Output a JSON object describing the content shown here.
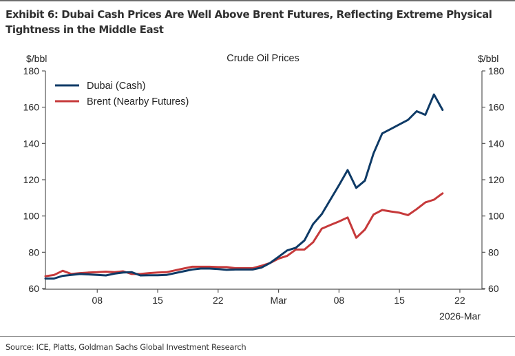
{
  "exhibit": {
    "title": "Exhibit 6: Dubai Cash Prices Are Well Above Brent Futures, Reflecting Extreme Physical Tightness in the Middle East",
    "source": "Source: ICE, Platts, Goldman Sachs Global Investment Research"
  },
  "chart_data": {
    "type": "line",
    "title": "Crude Oil Prices",
    "xlabel": "2026-Mar",
    "ylabel_left": "$/bbl",
    "ylabel_right": "$/bbl",
    "ylim": [
      60,
      180
    ],
    "yticks": [
      60,
      80,
      100,
      120,
      140,
      160,
      180
    ],
    "xlim_days": [
      0,
      52
    ],
    "xticks": [
      {
        "day": 6,
        "label": "08"
      },
      {
        "day": 13,
        "label": "15"
      },
      {
        "day": 20,
        "label": "22"
      },
      {
        "day": 27,
        "label": "Mar"
      },
      {
        "day": 34,
        "label": "08"
      },
      {
        "day": 41,
        "label": "15"
      },
      {
        "day": 48,
        "label": "22"
      }
    ],
    "x_note": "day 0 = 2026-02-02 (approx.), day index in calendar days",
    "grid": false,
    "legend_position": "top-left",
    "series": [
      {
        "name": "Dubai (Cash)",
        "color": "#0e3a66",
        "points": [
          [
            0,
            65.5
          ],
          [
            1,
            65.5
          ],
          [
            2,
            67.0
          ],
          [
            3,
            67.5
          ],
          [
            4,
            68.0
          ],
          [
            5,
            67.8
          ],
          [
            6,
            67.5
          ],
          [
            7,
            67.2
          ],
          [
            8,
            68.2
          ],
          [
            9,
            68.8
          ],
          [
            10,
            69.0
          ],
          [
            11,
            67.2
          ],
          [
            12,
            67.3
          ],
          [
            13,
            67.3
          ],
          [
            14,
            67.5
          ],
          [
            15,
            68.5
          ],
          [
            16,
            69.5
          ],
          [
            17,
            70.5
          ],
          [
            18,
            71.0
          ],
          [
            19,
            71.0
          ],
          [
            20,
            70.7
          ],
          [
            21,
            70.3
          ],
          [
            22,
            70.5
          ],
          [
            23,
            70.5
          ],
          [
            24,
            70.5
          ],
          [
            25,
            71.5
          ],
          [
            26,
            74.0
          ],
          [
            27,
            77.5
          ],
          [
            28,
            81.0
          ],
          [
            29,
            82.5
          ],
          [
            30,
            86.5
          ],
          [
            31,
            95.5
          ],
          [
            32,
            101.0
          ],
          [
            33,
            109.0
          ],
          [
            34,
            117.0
          ],
          [
            35,
            125.3
          ],
          [
            36,
            115.5
          ],
          [
            37,
            119.5
          ],
          [
            38,
            134.5
          ],
          [
            39,
            145.5
          ],
          [
            40,
            148.0
          ],
          [
            41,
            150.5
          ],
          [
            42,
            153.0
          ],
          [
            43,
            157.8
          ],
          [
            44,
            155.8
          ],
          [
            45,
            167.0
          ],
          [
            46,
            158.5
          ]
        ]
      },
      {
        "name": "Brent (Nearby Futures)",
        "color": "#c6393a",
        "points": [
          [
            0,
            66.8
          ],
          [
            1,
            67.5
          ],
          [
            2,
            69.8
          ],
          [
            3,
            68.0
          ],
          [
            4,
            68.5
          ],
          [
            5,
            68.8
          ],
          [
            6,
            69.0
          ],
          [
            7,
            69.3
          ],
          [
            8,
            69.0
          ],
          [
            9,
            69.5
          ],
          [
            10,
            68.0
          ],
          [
            11,
            68.0
          ],
          [
            12,
            68.5
          ],
          [
            13,
            68.8
          ],
          [
            14,
            69.0
          ],
          [
            15,
            70.0
          ],
          [
            16,
            71.0
          ],
          [
            17,
            72.0
          ],
          [
            18,
            72.0
          ],
          [
            19,
            72.0
          ],
          [
            20,
            71.8
          ],
          [
            21,
            71.8
          ],
          [
            22,
            71.2
          ],
          [
            23,
            71.2
          ],
          [
            24,
            71.2
          ],
          [
            25,
            72.5
          ],
          [
            26,
            74.0
          ],
          [
            27,
            76.5
          ],
          [
            28,
            78.0
          ],
          [
            29,
            81.5
          ],
          [
            30,
            81.5
          ],
          [
            31,
            85.5
          ],
          [
            32,
            93.0
          ],
          [
            33,
            95.0
          ],
          [
            34,
            97.0
          ],
          [
            35,
            99.2
          ],
          [
            36,
            88.0
          ],
          [
            37,
            92.5
          ],
          [
            38,
            100.8
          ],
          [
            39,
            103.3
          ],
          [
            40,
            102.5
          ],
          [
            41,
            101.8
          ],
          [
            42,
            100.5
          ],
          [
            43,
            103.8
          ],
          [
            44,
            107.5
          ],
          [
            45,
            109.0
          ],
          [
            46,
            112.5
          ]
        ]
      }
    ]
  }
}
